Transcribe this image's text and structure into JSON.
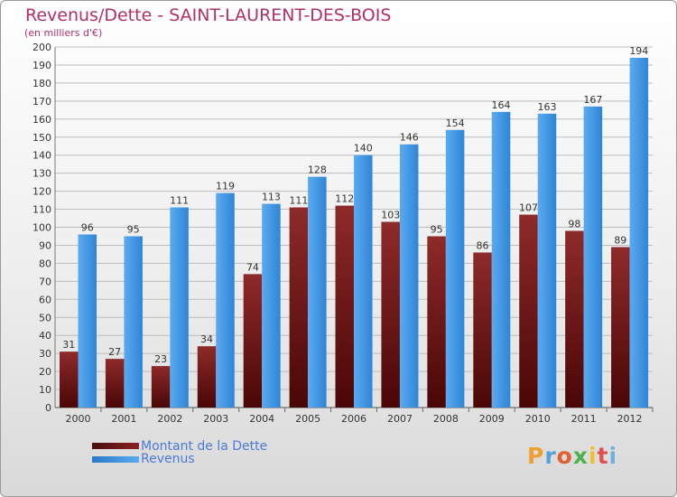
{
  "chart_data": {
    "type": "bar",
    "title": "Revenus/Dette - SAINT-LAURENT-DES-BOIS",
    "subtitle": "(en milliers d'€)",
    "categories": [
      "2000",
      "2001",
      "2002",
      "2003",
      "2004",
      "2005",
      "2006",
      "2007",
      "2008",
      "2009",
      "2010",
      "2011",
      "2012"
    ],
    "series": [
      {
        "name": "Montant de la Dette",
        "color": "#7a1b1b",
        "values": [
          31,
          27,
          23,
          34,
          74,
          111,
          112,
          103,
          95,
          86,
          107,
          98,
          89
        ]
      },
      {
        "name": "Revenus",
        "color": "#3a8fdd",
        "values": [
          96,
          95,
          111,
          119,
          113,
          128,
          140,
          146,
          154,
          164,
          163,
          167,
          194
        ]
      }
    ],
    "ylim": [
      0,
      200
    ],
    "ytick_step": 10,
    "grid": true,
    "legend_position": "bottom-left"
  },
  "brand": {
    "letters": [
      "P",
      "r",
      "o",
      "x",
      "i",
      "t",
      "i"
    ],
    "colors": [
      "#f0a030",
      "#5aa0d8",
      "#e06030",
      "#4fb04f",
      "#f0c030",
      "#e05050",
      "#6fb0e0"
    ]
  }
}
